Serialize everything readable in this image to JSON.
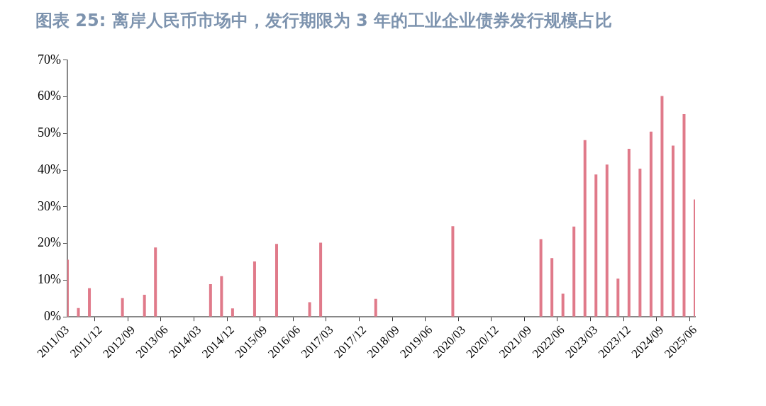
{
  "chart_data": {
    "type": "bar",
    "title": "图表 25: 离岸人民币市场中，发行期限为 3 年的工业企业债券发行规模占比",
    "categories": [
      "2011/03",
      null,
      null,
      "2011/12",
      null,
      null,
      "2012/09",
      null,
      null,
      "2013/06",
      null,
      null,
      "2014/03",
      null,
      null,
      "2014/12",
      null,
      null,
      "2015/09",
      null,
      null,
      "2016/06",
      null,
      null,
      "2017/03",
      null,
      null,
      "2017/12",
      null,
      null,
      "2018/09",
      null,
      null,
      "2019/06",
      null,
      null,
      "2020/03",
      null,
      null,
      "2020/12",
      null,
      null,
      "2021/09",
      null,
      null,
      "2022/06",
      null,
      null,
      "2023/03",
      null,
      null,
      "2023/12",
      null,
      null,
      "2024/09",
      null,
      null,
      "2025/06"
    ],
    "values": [
      15.6,
      2.4,
      7.8,
      0,
      0,
      5.1,
      0,
      6.0,
      18.9,
      0,
      0,
      0,
      0,
      8.9,
      11.1,
      2.3,
      0,
      15.1,
      0,
      19.9,
      0,
      0,
      4.0,
      20.2,
      0,
      0,
      0,
      0,
      4.9,
      0,
      0,
      0,
      0,
      0,
      0,
      24.7,
      0,
      0,
      0,
      0,
      0,
      0,
      0,
      21.2,
      16.0,
      6.3,
      24.6,
      48.2,
      38.8,
      41.5,
      10.4,
      45.8,
      40.4,
      50.5,
      60.2,
      46.7,
      55.3,
      32.0
    ],
    "color": "#e07a8a",
    "ylim": [
      0,
      70
    ],
    "yticks": [
      {
        "value": 0,
        "label": "0%"
      },
      {
        "value": 10,
        "label": "10%"
      },
      {
        "value": 20,
        "label": "20%"
      },
      {
        "value": 30,
        "label": "30%"
      },
      {
        "value": 40,
        "label": "40%"
      },
      {
        "value": 50,
        "label": "50%"
      },
      {
        "value": 60,
        "label": "60%"
      },
      {
        "value": 70,
        "label": "70%"
      }
    ],
    "grid": false,
    "legend": false
  }
}
